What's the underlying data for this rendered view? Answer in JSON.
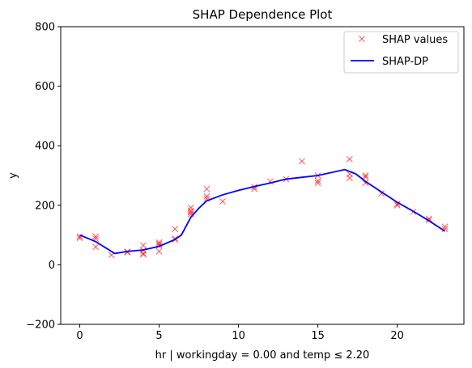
{
  "chart_data": {
    "type": "line",
    "title": "SHAP Dependence Plot",
    "xlabel": "hr | workingday = 0.00 and temp ≤ 2.20",
    "ylabel": "y",
    "xlim": [
      -1.2,
      24.2
    ],
    "ylim": [
      -200,
      800
    ],
    "xticks": [
      0,
      5,
      10,
      15,
      20
    ],
    "yticks": [
      -200,
      0,
      200,
      400,
      600,
      800
    ],
    "grid": false,
    "legend_position": "top-right",
    "colors": {
      "scatter": "#ff0000",
      "line": "#0000ff"
    },
    "series": [
      {
        "name": "SHAP values",
        "kind": "scatter",
        "marker": "x",
        "points": [
          [
            0,
            95
          ],
          [
            0,
            90
          ],
          [
            1,
            95
          ],
          [
            1,
            88
          ],
          [
            1,
            60
          ],
          [
            2,
            33
          ],
          [
            3,
            42
          ],
          [
            3,
            44
          ],
          [
            4,
            65
          ],
          [
            4,
            48
          ],
          [
            4,
            38
          ],
          [
            4,
            35
          ],
          [
            5,
            75
          ],
          [
            5,
            70
          ],
          [
            5,
            65
          ],
          [
            5,
            45
          ],
          [
            6,
            120
          ],
          [
            6,
            88
          ],
          [
            6,
            85
          ],
          [
            7,
            192
          ],
          [
            7,
            182
          ],
          [
            7,
            176
          ],
          [
            7,
            170
          ],
          [
            8,
            255
          ],
          [
            8,
            230
          ],
          [
            8,
            222
          ],
          [
            9,
            213
          ],
          [
            11,
            262
          ],
          [
            11,
            255
          ],
          [
            12,
            280
          ],
          [
            13,
            288
          ],
          [
            14,
            348
          ],
          [
            15,
            300
          ],
          [
            15,
            282
          ],
          [
            15,
            275
          ],
          [
            17,
            355
          ],
          [
            17,
            305
          ],
          [
            17,
            292
          ],
          [
            18,
            300
          ],
          [
            18,
            295
          ],
          [
            18,
            275
          ],
          [
            19,
            240
          ],
          [
            20,
            205
          ],
          [
            20,
            200
          ],
          [
            21,
            178
          ],
          [
            22,
            155
          ],
          [
            22,
            150
          ],
          [
            23,
            128
          ],
          [
            23,
            120
          ]
        ]
      },
      {
        "name": "SHAP-DP",
        "kind": "line",
        "points": [
          [
            0,
            100
          ],
          [
            1,
            78
          ],
          [
            2.2,
            38
          ],
          [
            3,
            45
          ],
          [
            4,
            50
          ],
          [
            5,
            62
          ],
          [
            6,
            85
          ],
          [
            6.4,
            100
          ],
          [
            7,
            160
          ],
          [
            7.5,
            190
          ],
          [
            8,
            215
          ],
          [
            9,
            235
          ],
          [
            10,
            250
          ],
          [
            11,
            263
          ],
          [
            12,
            275
          ],
          [
            13,
            288
          ],
          [
            15,
            300
          ],
          [
            16.7,
            320
          ],
          [
            17.4,
            305
          ],
          [
            18,
            280
          ],
          [
            19,
            245
          ],
          [
            20,
            210
          ],
          [
            21,
            180
          ],
          [
            22,
            148
          ],
          [
            23,
            113
          ]
        ]
      }
    ]
  }
}
